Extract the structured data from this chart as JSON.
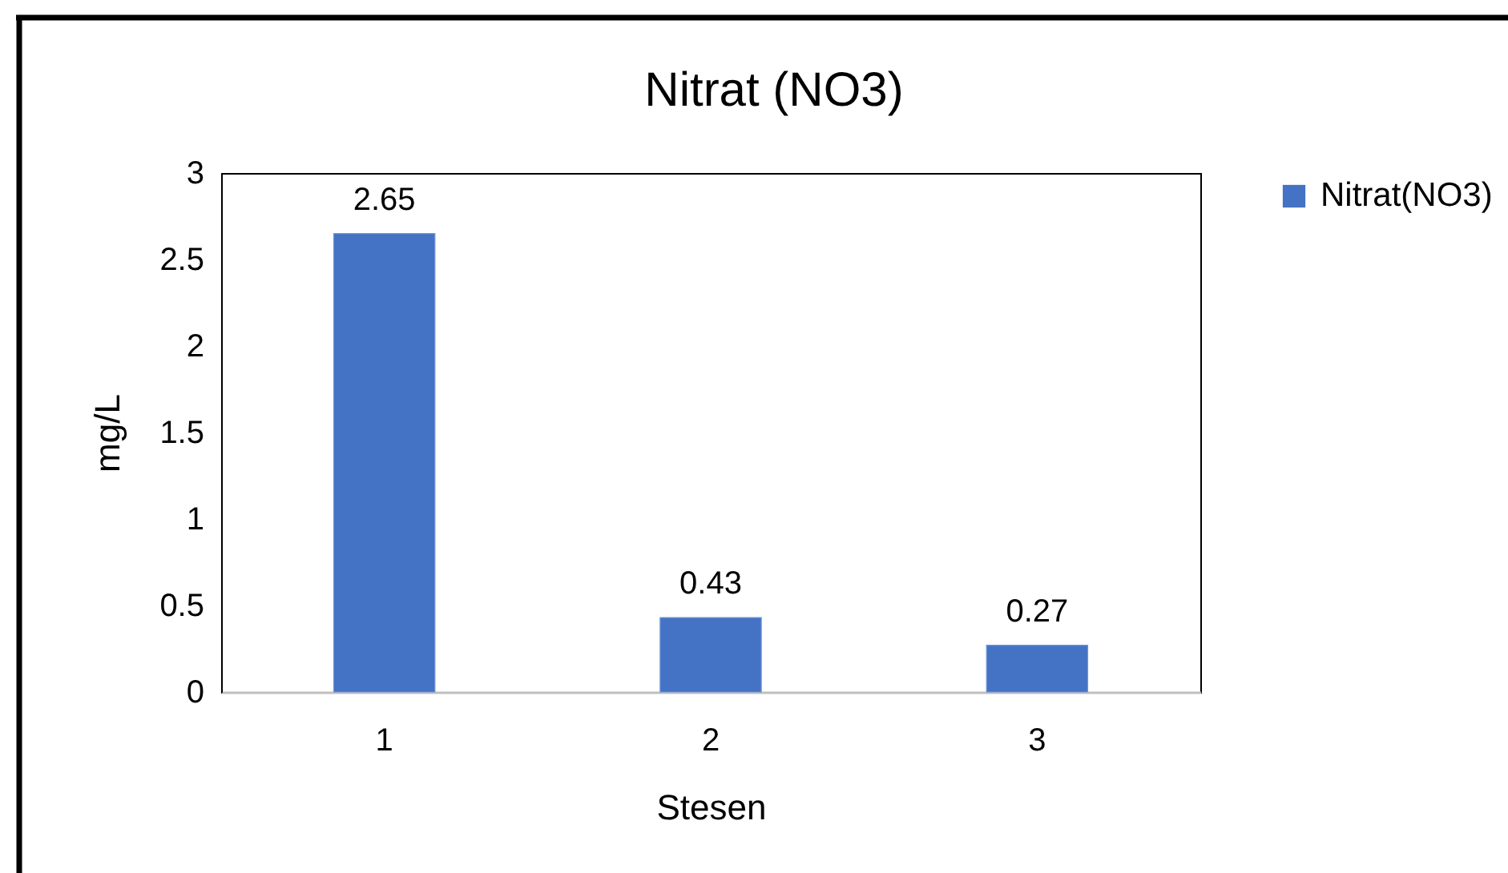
{
  "chart_data": {
    "type": "bar",
    "title": "Nitrat (NO3)",
    "xlabel": "Stesen",
    "ylabel": "mg/L",
    "categories": [
      "1",
      "2",
      "3"
    ],
    "series": [
      {
        "name": "Nitrat(NO3)",
        "color": "#4472c4",
        "values": [
          2.65,
          0.43,
          0.27
        ]
      }
    ],
    "ylim": [
      0,
      3
    ],
    "yticks": [
      0,
      0.5,
      1,
      1.5,
      2,
      2.5,
      3
    ],
    "grid": false,
    "legend": "top right",
    "data_labels": true
  }
}
